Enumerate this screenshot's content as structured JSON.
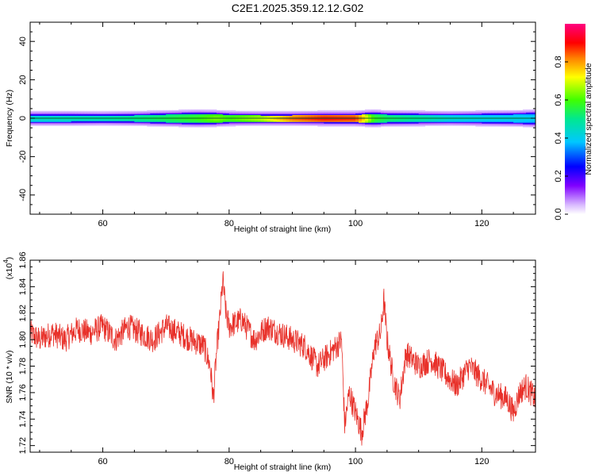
{
  "title": "C2E1.2025.359.12.12.G02",
  "chart_data": [
    {
      "type": "heatmap",
      "title": "C2E1.2025.359.12.12.G02",
      "xlabel": "Height of straight line (km)",
      "ylabel": "Frequency (Hz)",
      "xlim": [
        48.5,
        128.5
      ],
      "ylim": [
        -50,
        50
      ],
      "xticks": [
        60,
        80,
        100,
        120
      ],
      "yticks": [
        40,
        20,
        0,
        -20,
        -40
      ],
      "colorbar": {
        "label": "Normalized spectral amplitude",
        "range": [
          0.0,
          1.0
        ],
        "ticks": [
          "0.0",
          "0.2",
          "0.4",
          "0.6",
          "0.8"
        ],
        "colormap": "rainbow (white/violet → blue → cyan → green → yellow → red → magenta)"
      },
      "band": {
        "center_frequency_hz": 0,
        "heights_km": [
          48.5,
          55,
          60,
          65,
          70,
          75,
          78,
          80,
          85,
          90,
          95,
          100,
          101.5,
          103,
          105,
          110,
          115,
          120,
          125,
          128.5
        ],
        "half_width_hz": [
          2.2,
          2.2,
          2.0,
          2.2,
          2.6,
          3.0,
          2.8,
          2.4,
          2.2,
          2.2,
          2.4,
          2.4,
          2.8,
          3.0,
          2.6,
          2.4,
          2.2,
          2.4,
          2.6,
          3.0
        ],
        "peak_amplitude": [
          0.45,
          0.47,
          0.48,
          0.52,
          0.56,
          0.6,
          0.66,
          0.62,
          0.7,
          0.86,
          0.92,
          0.9,
          0.76,
          0.6,
          0.55,
          0.5,
          0.44,
          0.42,
          0.42,
          0.4
        ]
      }
    },
    {
      "type": "line",
      "xlabel": "Height of straight line (km)",
      "ylabel": "SNR (10 * v/v)",
      "yscale_note": "(x10",
      "yscale_exp": "4",
      "xlim": [
        48.5,
        128.5
      ],
      "ylim": [
        1.715,
        1.86
      ],
      "xticks": [
        60,
        80,
        100,
        120
      ],
      "yticks": [
        "1.72",
        "1.74",
        "1.76",
        "1.78",
        "1.80",
        "1.82",
        "1.84",
        "1.86"
      ],
      "color": "#e8312a",
      "series": [
        {
          "x": [
            48.5,
            50,
            52,
            54,
            56,
            58,
            60,
            62,
            64,
            66,
            68,
            70,
            72,
            74,
            76,
            77,
            77.5,
            78,
            78.5,
            79,
            79.5,
            80,
            82,
            84,
            86,
            88,
            90,
            92,
            94,
            96,
            97,
            97.8,
            98.3,
            99,
            100,
            101,
            102,
            103,
            104,
            104.5,
            105,
            106,
            107,
            108,
            110,
            112,
            114,
            116,
            118,
            120,
            122,
            124,
            125,
            126,
            127,
            128.5
          ],
          "y": [
            1.805,
            1.8,
            1.805,
            1.8,
            1.808,
            1.805,
            1.81,
            1.8,
            1.81,
            1.805,
            1.8,
            1.81,
            1.805,
            1.8,
            1.795,
            1.78,
            1.755,
            1.79,
            1.815,
            1.845,
            1.82,
            1.81,
            1.815,
            1.8,
            1.81,
            1.805,
            1.8,
            1.795,
            1.78,
            1.79,
            1.795,
            1.8,
            1.735,
            1.76,
            1.745,
            1.73,
            1.755,
            1.795,
            1.805,
            1.83,
            1.8,
            1.77,
            1.755,
            1.79,
            1.78,
            1.785,
            1.775,
            1.765,
            1.78,
            1.77,
            1.76,
            1.755,
            1.745,
            1.76,
            1.765,
            1.755
          ],
          "noise_amplitude": 0.01
        }
      ]
    }
  ]
}
